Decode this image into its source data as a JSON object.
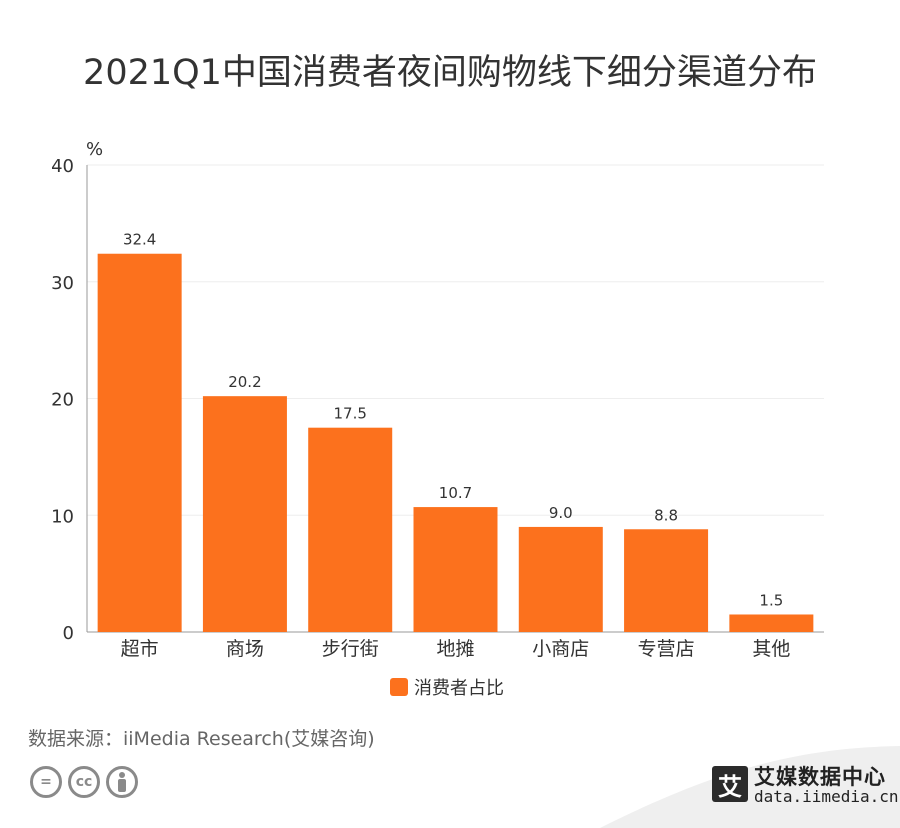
{
  "title": "2021Q1中国消费者夜间购物线下细分渠道分布",
  "chart_data": {
    "type": "bar",
    "title": "2021Q1中国消费者夜间购物线下细分渠道分布",
    "ylabel": "%",
    "xlabel": "",
    "categories": [
      "超市",
      "商场",
      "步行街",
      "地摊",
      "小商店",
      "专营店",
      "其他"
    ],
    "series": [
      {
        "name": "消费者占比",
        "values": [
          32.4,
          20.2,
          17.5,
          10.7,
          9.0,
          8.8,
          1.5
        ]
      }
    ],
    "value_labels": [
      "32.4",
      "20.2",
      "17.5",
      "10.7",
      "9.0",
      "8.8",
      "1.5"
    ],
    "ylim": [
      0,
      40
    ],
    "yticks": [
      0,
      10,
      20,
      30,
      40
    ],
    "grid": true,
    "legend_position": "bottom",
    "bar_color": "#FC711D"
  },
  "source": "数据来源：iiMedia Research(艾媒咨询)",
  "license_icons": [
    "equals-icon",
    "cc-icon",
    "person-icon"
  ],
  "license_labels": [
    "=",
    "cc"
  ],
  "brand": {
    "logo_char": "艾",
    "name": "艾媒数据中心",
    "url": "data.iimedia.cn"
  }
}
